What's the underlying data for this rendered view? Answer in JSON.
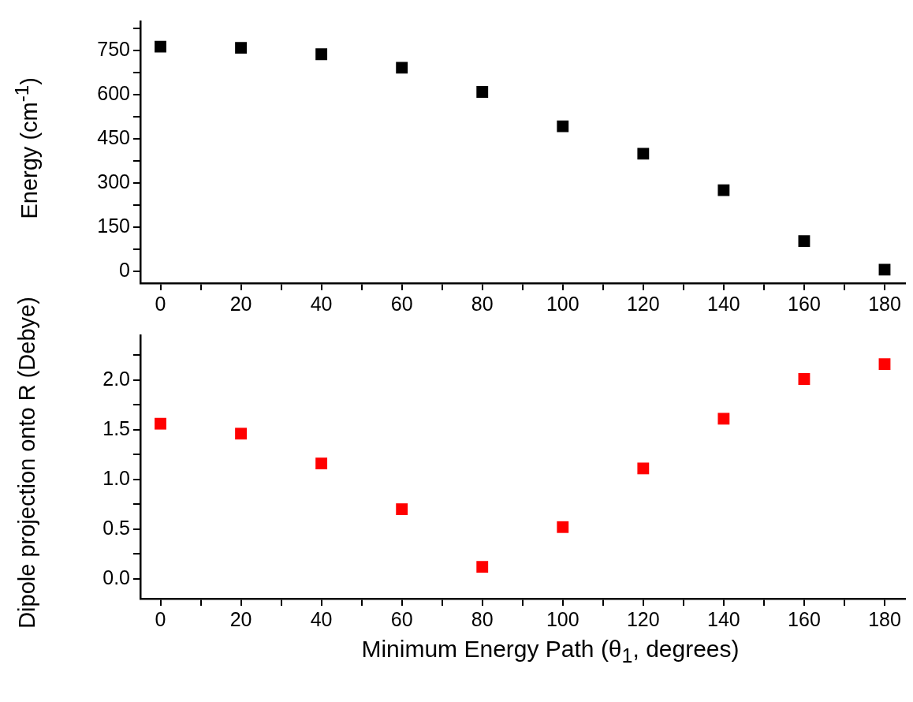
{
  "chart_data": [
    {
      "type": "scatter",
      "ylabel": "Energy (cm$^{-1}$)",
      "x": [
        0,
        20,
        40,
        60,
        80,
        100,
        120,
        140,
        160,
        180
      ],
      "series": [
        {
          "color": "#000000",
          "values": [
            764,
            760,
            738,
            692,
            610,
            493,
            400,
            276,
            103,
            6
          ]
        }
      ],
      "xlim": [
        -5,
        185
      ],
      "xticks": [
        0,
        {
          "value": 10,
          "label": null
        },
        20,
        {
          "value": 30,
          "label": null
        },
        40,
        {
          "value": 50,
          "label": null
        },
        60,
        {
          "value": 70,
          "label": null
        },
        80,
        {
          "value": 90,
          "label": null
        },
        100,
        {
          "value": 110,
          "label": null
        },
        120,
        {
          "value": 130,
          "label": null
        },
        140,
        {
          "value": 150,
          "label": null
        },
        160,
        {
          "value": 170,
          "label": null
        },
        180
      ],
      "ylim": [
        -40,
        850
      ],
      "yticks": [
        0,
        {
          "value": 75,
          "label": null
        },
        150,
        {
          "value": 225,
          "label": null
        },
        300,
        {
          "value": 375,
          "label": null
        },
        450,
        {
          "value": 525,
          "label": null
        },
        600,
        {
          "value": 675,
          "label": null
        },
        750,
        {
          "value": 825,
          "label": null
        }
      ],
      "grid": false,
      "legend": false,
      "marker": "square"
    },
    {
      "type": "scatter",
      "ylabel": "Dipole projection onto R (Debye)",
      "xlabel": "Minimum Energy Path (θ$_{1}$, degrees)",
      "x": [
        0,
        20,
        40,
        60,
        80,
        100,
        120,
        140,
        160,
        180
      ],
      "series": [
        {
          "color": "#ff0000",
          "values": [
            1.56,
            1.46,
            1.16,
            0.7,
            0.12,
            0.52,
            1.11,
            1.61,
            2.01,
            2.16
          ]
        }
      ],
      "xlim": [
        -5,
        185
      ],
      "xticks": [
        0,
        {
          "value": 10,
          "label": null
        },
        20,
        {
          "value": 30,
          "label": null
        },
        40,
        {
          "value": 50,
          "label": null
        },
        60,
        {
          "value": 70,
          "label": null
        },
        80,
        {
          "value": 90,
          "label": null
        },
        100,
        {
          "value": 110,
          "label": null
        },
        120,
        {
          "value": 130,
          "label": null
        },
        140,
        {
          "value": 150,
          "label": null
        },
        160,
        {
          "value": 170,
          "label": null
        },
        180
      ],
      "ylim": [
        -0.2,
        2.45
      ],
      "yticks": [
        {
          "value": 0,
          "label": "0.0"
        },
        {
          "value": 0.25,
          "label": null
        },
        {
          "value": 0.5,
          "label": "0.5"
        },
        {
          "value": 0.75,
          "label": null
        },
        {
          "value": 1,
          "label": "1.0"
        },
        {
          "value": 1.25,
          "label": null
        },
        {
          "value": 1.5,
          "label": "1.5"
        },
        {
          "value": 1.75,
          "label": null
        },
        {
          "value": 2,
          "label": "2.0"
        },
        {
          "value": 2.25,
          "label": null
        }
      ],
      "grid": false,
      "legend": false,
      "marker": "square"
    }
  ]
}
